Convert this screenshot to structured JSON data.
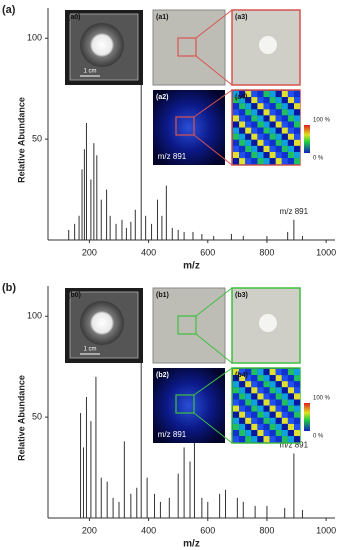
{
  "chart_data": [
    {
      "type": "bar",
      "panel_label": "(a)",
      "xlabel": "m/z",
      "ylabel": "Relative Abundance",
      "color": "#333333",
      "accent": "#d9534f",
      "x": [
        130,
        150,
        165,
        175,
        183,
        190,
        205,
        215,
        225,
        240,
        258,
        270,
        290,
        310,
        325,
        340,
        355,
        375,
        390,
        410,
        430,
        445,
        460,
        480,
        500,
        520,
        550,
        580,
        620,
        680,
        720,
        800,
        870,
        891,
        920
      ],
      "values": [
        5,
        8,
        12,
        35,
        45,
        58,
        30,
        48,
        42,
        20,
        25,
        12,
        8,
        10,
        6,
        9,
        15,
        100,
        12,
        8,
        20,
        12,
        27,
        6,
        5,
        4,
        4,
        3,
        2,
        3,
        2,
        2,
        4,
        10,
        2
      ],
      "xlim": [
        60,
        1030
      ],
      "ylim": [
        0,
        115
      ],
      "xticks": [
        200,
        400,
        600,
        800,
        1000
      ],
      "yticks": [
        50,
        100
      ],
      "annotations": [
        {
          "text": "m/z 891",
          "x": 891
        }
      ],
      "insets": {
        "labels": [
          "(a0)",
          "(a1)",
          "(a2)",
          "(a3)",
          "(a4)"
        ],
        "scale_bar": "1 cm",
        "image_label": "m/z 891",
        "colorbar_max": "100 %",
        "colorbar_min": "0 %"
      }
    },
    {
      "type": "bar",
      "panel_label": "(b)",
      "xlabel": "m/z",
      "ylabel": "Relative Abundance",
      "color": "#333333",
      "accent": "#3fbf3f",
      "x": [
        170,
        180,
        190,
        205,
        222,
        240,
        260,
        280,
        300,
        318,
        340,
        360,
        375,
        395,
        420,
        440,
        470,
        500,
        520,
        540,
        555,
        580,
        600,
        640,
        660,
        700,
        720,
        760,
        800,
        860,
        891,
        920
      ],
      "values": [
        52,
        35,
        60,
        48,
        70,
        20,
        18,
        10,
        8,
        38,
        12,
        15,
        100,
        20,
        12,
        8,
        10,
        22,
        35,
        28,
        42,
        10,
        8,
        12,
        14,
        10,
        8,
        6,
        6,
        5,
        32,
        4
      ],
      "xlim": [
        60,
        1030
      ],
      "ylim": [
        0,
        115
      ],
      "xticks": [
        200,
        400,
        600,
        800,
        1000
      ],
      "yticks": [
        50,
        100
      ],
      "annotations": [
        {
          "text": "m/z 891",
          "x": 891
        }
      ],
      "insets": {
        "labels": [
          "(b0)",
          "(b1)",
          "(b2)",
          "(b3)",
          "(b4)"
        ],
        "scale_bar": "1 cm",
        "image_label": "m/z 891",
        "colorbar_max": "100 %",
        "colorbar_min": "0 %"
      }
    }
  ]
}
